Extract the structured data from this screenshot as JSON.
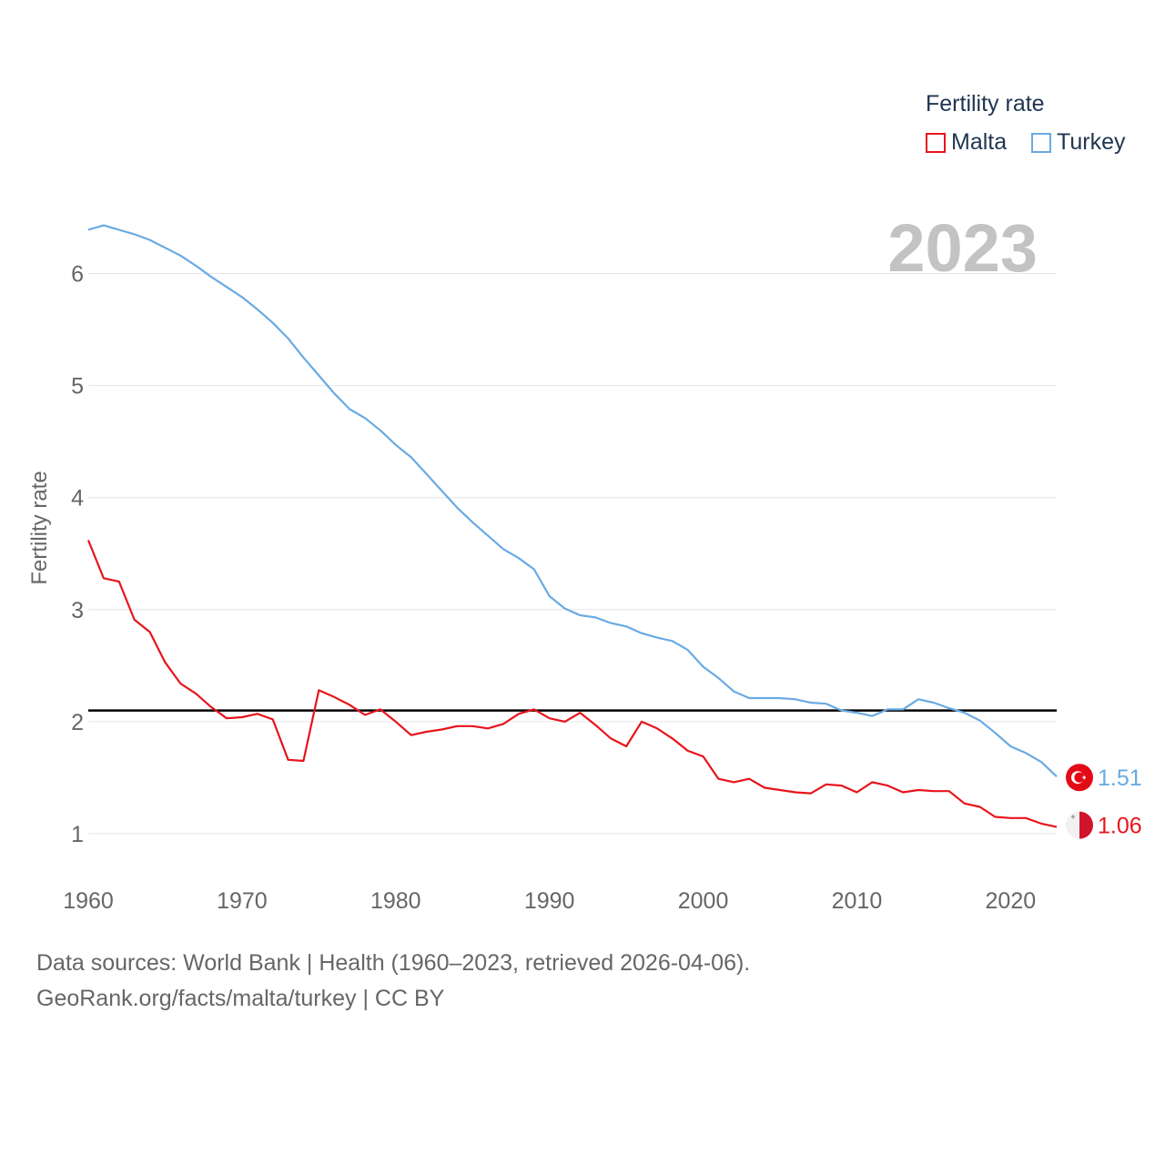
{
  "legend": {
    "title": "Fertility rate",
    "items": [
      {
        "label": "Malta",
        "color": "#e8141c"
      },
      {
        "label": "Turkey",
        "color": "#6aaae3"
      }
    ]
  },
  "year_label": "2023",
  "footer": {
    "line1": "Data sources: World Bank | Health (1960–2023, retrieved 2026-04-06).",
    "line2": "GeoRank.org/facts/malta/turkey | CC BY"
  },
  "chart_data": {
    "type": "line",
    "title": "Fertility rate",
    "xlabel": "",
    "ylabel": "Fertility rate",
    "xlim": [
      1960,
      2023
    ],
    "ylim": [
      0.7,
      6.6
    ],
    "x_ticks": [
      1960,
      1970,
      1980,
      1990,
      2000,
      2010,
      2020
    ],
    "y_ticks": [
      1,
      2,
      3,
      4,
      5,
      6
    ],
    "grid": true,
    "reference_line": {
      "y": 2.1,
      "color": "#000000"
    },
    "x": [
      1960,
      1961,
      1962,
      1963,
      1964,
      1965,
      1966,
      1967,
      1968,
      1969,
      1970,
      1971,
      1972,
      1973,
      1974,
      1975,
      1976,
      1977,
      1978,
      1979,
      1980,
      1981,
      1982,
      1983,
      1984,
      1985,
      1986,
      1987,
      1988,
      1989,
      1990,
      1991,
      1992,
      1993,
      1994,
      1995,
      1996,
      1997,
      1998,
      1999,
      2000,
      2001,
      2002,
      2003,
      2004,
      2005,
      2006,
      2007,
      2008,
      2009,
      2010,
      2011,
      2012,
      2013,
      2014,
      2015,
      2016,
      2017,
      2018,
      2019,
      2020,
      2021,
      2022,
      2023
    ],
    "series": [
      {
        "name": "Malta",
        "color": "#e8141c",
        "end_label": "1.06",
        "values": [
          3.62,
          3.28,
          3.25,
          2.91,
          2.8,
          2.53,
          2.34,
          2.25,
          2.13,
          2.03,
          2.04,
          2.07,
          2.02,
          1.66,
          1.65,
          2.28,
          2.22,
          2.15,
          2.06,
          2.11,
          2.0,
          1.88,
          1.91,
          1.93,
          1.96,
          1.96,
          1.94,
          1.98,
          2.07,
          2.11,
          2.03,
          2.0,
          2.08,
          1.97,
          1.85,
          1.78,
          2.0,
          1.94,
          1.85,
          1.74,
          1.69,
          1.49,
          1.46,
          1.49,
          1.41,
          1.39,
          1.37,
          1.36,
          1.44,
          1.43,
          1.37,
          1.46,
          1.43,
          1.37,
          1.39,
          1.38,
          1.38,
          1.27,
          1.24,
          1.15,
          1.14,
          1.14,
          1.09,
          1.06
        ]
      },
      {
        "name": "Turkey",
        "color": "#6aaae3",
        "end_label": "1.51",
        "values": [
          6.39,
          6.43,
          6.39,
          6.35,
          6.3,
          6.23,
          6.16,
          6.07,
          5.97,
          5.88,
          5.79,
          5.68,
          5.56,
          5.42,
          5.25,
          5.09,
          4.93,
          4.79,
          4.71,
          4.6,
          4.47,
          4.36,
          4.21,
          4.06,
          3.91,
          3.78,
          3.66,
          3.54,
          3.46,
          3.36,
          3.12,
          3.01,
          2.95,
          2.93,
          2.88,
          2.85,
          2.79,
          2.75,
          2.72,
          2.64,
          2.49,
          2.39,
          2.27,
          2.21,
          2.21,
          2.21,
          2.2,
          2.17,
          2.16,
          2.1,
          2.08,
          2.05,
          2.11,
          2.11,
          2.2,
          2.17,
          2.12,
          2.08,
          2.01,
          1.9,
          1.78,
          1.72,
          1.64,
          1.51
        ]
      }
    ]
  }
}
